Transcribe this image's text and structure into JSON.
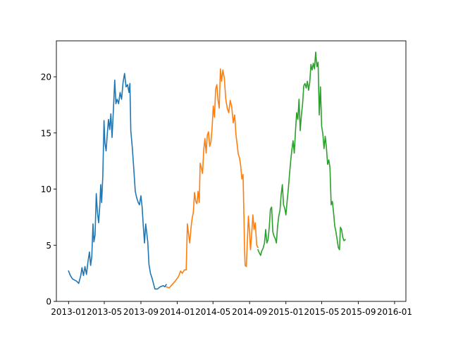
{
  "chart_data": {
    "type": "line",
    "title": "",
    "xlabel": "",
    "ylabel": "",
    "xlim": [
      "2012-11-21",
      "2016-02-08"
    ],
    "ylim": [
      0,
      23.2
    ],
    "grid": false,
    "legend": "none",
    "x_ticks": [
      {
        "date": "2013-01-01",
        "label": "2013-01"
      },
      {
        "date": "2013-05-01",
        "label": "2013-05"
      },
      {
        "date": "2013-09-01",
        "label": "2013-09"
      },
      {
        "date": "2014-01-01",
        "label": "2014-01"
      },
      {
        "date": "2014-05-01",
        "label": "2014-05"
      },
      {
        "date": "2014-09-01",
        "label": "2014-09"
      },
      {
        "date": "2015-01-01",
        "label": "2015-01"
      },
      {
        "date": "2015-05-01",
        "label": "2015-05"
      },
      {
        "date": "2015-09-01",
        "label": "2015-09"
      },
      {
        "date": "2016-01-01",
        "label": "2016-01"
      }
    ],
    "y_ticks": [
      {
        "value": 0,
        "label": "0"
      },
      {
        "value": 5,
        "label": "5"
      },
      {
        "value": 10,
        "label": "10"
      },
      {
        "value": 15,
        "label": "15"
      },
      {
        "value": 20,
        "label": "20"
      }
    ],
    "series": [
      {
        "color": "#1f77b4",
        "points": [
          [
            "2013-01-01",
            2.7
          ],
          [
            "2013-01-07",
            2.3
          ],
          [
            "2013-01-14",
            2.0
          ],
          [
            "2013-01-21",
            1.9
          ],
          [
            "2013-01-28",
            1.8
          ],
          [
            "2013-02-04",
            1.6
          ],
          [
            "2013-02-11",
            2.3
          ],
          [
            "2013-02-15",
            3.0
          ],
          [
            "2013-02-20",
            2.3
          ],
          [
            "2013-02-25",
            3.1
          ],
          [
            "2013-03-02",
            2.4
          ],
          [
            "2013-03-07",
            3.5
          ],
          [
            "2013-03-12",
            4.4
          ],
          [
            "2013-03-16",
            3.2
          ],
          [
            "2013-03-20",
            4.0
          ],
          [
            "2013-03-24",
            6.9
          ],
          [
            "2013-03-27",
            5.3
          ],
          [
            "2013-03-31",
            5.9
          ],
          [
            "2013-04-04",
            9.6
          ],
          [
            "2013-04-08",
            7.9
          ],
          [
            "2013-04-12",
            7.0
          ],
          [
            "2013-04-16",
            8.6
          ],
          [
            "2013-04-19",
            10.4
          ],
          [
            "2013-04-22",
            8.8
          ],
          [
            "2013-04-26",
            11.2
          ],
          [
            "2013-04-30",
            16.1
          ],
          [
            "2013-05-03",
            14.1
          ],
          [
            "2013-05-07",
            13.4
          ],
          [
            "2013-05-11",
            14.9
          ],
          [
            "2013-05-15",
            16.2
          ],
          [
            "2013-05-19",
            15.3
          ],
          [
            "2013-05-23",
            16.7
          ],
          [
            "2013-05-27",
            14.6
          ],
          [
            "2013-06-01",
            17.3
          ],
          [
            "2013-06-05",
            19.7
          ],
          [
            "2013-06-09",
            17.6
          ],
          [
            "2013-06-13",
            18.0
          ],
          [
            "2013-06-18",
            17.6
          ],
          [
            "2013-06-23",
            18.6
          ],
          [
            "2013-06-28",
            18.0
          ],
          [
            "2013-07-03",
            19.5
          ],
          [
            "2013-07-08",
            20.3
          ],
          [
            "2013-07-13",
            19.1
          ],
          [
            "2013-07-18",
            19.3
          ],
          [
            "2013-07-23",
            18.6
          ],
          [
            "2013-07-26",
            19.4
          ],
          [
            "2013-07-29",
            15.2
          ],
          [
            "2013-08-03",
            13.7
          ],
          [
            "2013-08-08",
            11.8
          ],
          [
            "2013-08-13",
            9.8
          ],
          [
            "2013-08-18",
            9.2
          ],
          [
            "2013-08-23",
            8.8
          ],
          [
            "2013-08-27",
            8.6
          ],
          [
            "2013-09-01",
            9.4
          ],
          [
            "2013-09-05",
            8.4
          ],
          [
            "2013-09-09",
            6.7
          ],
          [
            "2013-09-13",
            5.2
          ],
          [
            "2013-09-17",
            6.9
          ],
          [
            "2013-09-21",
            6.0
          ],
          [
            "2013-09-24",
            5.3
          ],
          [
            "2013-09-28",
            3.3
          ],
          [
            "2013-10-03",
            2.5
          ],
          [
            "2013-10-08",
            2.1
          ],
          [
            "2013-10-13",
            1.6
          ],
          [
            "2013-10-18",
            1.1
          ],
          [
            "2013-10-26",
            1.1
          ],
          [
            "2013-11-05",
            1.3
          ],
          [
            "2013-11-15",
            1.4
          ],
          [
            "2013-11-20",
            1.3
          ],
          [
            "2013-11-25",
            1.5
          ]
        ]
      },
      {
        "color": "#ff7f0e",
        "points": [
          [
            "2013-11-25",
            1.3
          ],
          [
            "2013-12-05",
            1.2
          ],
          [
            "2013-12-15",
            1.5
          ],
          [
            "2013-12-25",
            1.8
          ],
          [
            "2014-01-05",
            2.2
          ],
          [
            "2014-01-12",
            2.7
          ],
          [
            "2014-01-18",
            2.5
          ],
          [
            "2014-01-25",
            2.8
          ],
          [
            "2014-01-31",
            2.8
          ],
          [
            "2014-02-04",
            6.9
          ],
          [
            "2014-02-08",
            6.0
          ],
          [
            "2014-02-12",
            5.2
          ],
          [
            "2014-02-16",
            6.5
          ],
          [
            "2014-02-20",
            7.4
          ],
          [
            "2014-02-24",
            7.9
          ],
          [
            "2014-02-28",
            9.7
          ],
          [
            "2014-03-04",
            8.9
          ],
          [
            "2014-03-08",
            8.7
          ],
          [
            "2014-03-12",
            9.8
          ],
          [
            "2014-03-16",
            8.8
          ],
          [
            "2014-03-19",
            12.3
          ],
          [
            "2014-03-23",
            11.9
          ],
          [
            "2014-03-27",
            11.4
          ],
          [
            "2014-03-31",
            13.5
          ],
          [
            "2014-04-04",
            14.5
          ],
          [
            "2014-04-08",
            13.2
          ],
          [
            "2014-04-12",
            14.8
          ],
          [
            "2014-04-16",
            15.1
          ],
          [
            "2014-04-20",
            13.8
          ],
          [
            "2014-04-24",
            14.2
          ],
          [
            "2014-04-28",
            15.4
          ],
          [
            "2014-05-02",
            17.4
          ],
          [
            "2014-05-06",
            16.4
          ],
          [
            "2014-05-10",
            18.9
          ],
          [
            "2014-05-14",
            19.3
          ],
          [
            "2014-05-18",
            17.9
          ],
          [
            "2014-05-22",
            17.2
          ],
          [
            "2014-05-26",
            20.7
          ],
          [
            "2014-05-30",
            19.6
          ],
          [
            "2014-06-03",
            20.6
          ],
          [
            "2014-06-08",
            19.9
          ],
          [
            "2014-06-13",
            18.0
          ],
          [
            "2014-06-18",
            17.2
          ],
          [
            "2014-06-23",
            16.8
          ],
          [
            "2014-06-28",
            17.9
          ],
          [
            "2014-07-03",
            17.3
          ],
          [
            "2014-07-08",
            15.9
          ],
          [
            "2014-07-13",
            16.6
          ],
          [
            "2014-07-17",
            14.9
          ],
          [
            "2014-07-21",
            14.0
          ],
          [
            "2014-07-25",
            13.1
          ],
          [
            "2014-07-29",
            12.8
          ],
          [
            "2014-08-02",
            12.1
          ],
          [
            "2014-08-06",
            10.9
          ],
          [
            "2014-08-10",
            11.3
          ],
          [
            "2014-08-13",
            7.6
          ],
          [
            "2014-08-15",
            4.6
          ],
          [
            "2014-08-17",
            3.2
          ],
          [
            "2014-08-21",
            3.1
          ],
          [
            "2014-08-24",
            5.1
          ],
          [
            "2014-08-28",
            7.6
          ],
          [
            "2014-09-01",
            6.1
          ],
          [
            "2014-09-04",
            4.6
          ],
          [
            "2014-09-08",
            6.0
          ],
          [
            "2014-09-12",
            7.7
          ],
          [
            "2014-09-16",
            6.4
          ],
          [
            "2014-09-20",
            7.0
          ],
          [
            "2014-09-25",
            5.0
          ],
          [
            "2014-09-29",
            4.8
          ]
        ]
      },
      {
        "color": "#2ca02c",
        "points": [
          [
            "2014-09-29",
            4.6
          ],
          [
            "2014-10-04",
            4.3
          ],
          [
            "2014-10-08",
            4.1
          ],
          [
            "2014-10-12",
            4.5
          ],
          [
            "2014-10-16",
            4.7
          ],
          [
            "2014-10-21",
            5.2
          ],
          [
            "2014-10-25",
            6.4
          ],
          [
            "2014-10-29",
            5.2
          ],
          [
            "2014-11-02",
            5.5
          ],
          [
            "2014-11-06",
            6.6
          ],
          [
            "2014-11-10",
            8.2
          ],
          [
            "2014-11-14",
            8.4
          ],
          [
            "2014-11-18",
            6.2
          ],
          [
            "2014-11-22",
            5.8
          ],
          [
            "2014-11-26",
            5.6
          ],
          [
            "2014-11-30",
            5.2
          ],
          [
            "2014-12-04",
            6.7
          ],
          [
            "2014-12-08",
            7.6
          ],
          [
            "2014-12-12",
            8.1
          ],
          [
            "2014-12-16",
            9.5
          ],
          [
            "2014-12-20",
            10.4
          ],
          [
            "2014-12-24",
            8.6
          ],
          [
            "2014-12-28",
            8.3
          ],
          [
            "2015-01-01",
            7.7
          ],
          [
            "2015-01-05",
            8.9
          ],
          [
            "2015-01-09",
            10.0
          ],
          [
            "2015-01-13",
            11.3
          ],
          [
            "2015-01-17",
            12.5
          ],
          [
            "2015-01-21",
            13.5
          ],
          [
            "2015-01-25",
            14.3
          ],
          [
            "2015-01-29",
            13.2
          ],
          [
            "2015-02-02",
            15.1
          ],
          [
            "2015-02-06",
            16.8
          ],
          [
            "2015-02-10",
            16.2
          ],
          [
            "2015-02-14",
            18.0
          ],
          [
            "2015-02-18",
            15.2
          ],
          [
            "2015-02-22",
            16.6
          ],
          [
            "2015-02-26",
            17.6
          ],
          [
            "2015-03-02",
            19.2
          ],
          [
            "2015-03-06",
            19.4
          ],
          [
            "2015-03-10",
            19.0
          ],
          [
            "2015-03-14",
            19.6
          ],
          [
            "2015-03-18",
            18.8
          ],
          [
            "2015-03-22",
            19.5
          ],
          [
            "2015-03-26",
            21.1
          ],
          [
            "2015-03-30",
            20.6
          ],
          [
            "2015-04-03",
            21.2
          ],
          [
            "2015-04-07",
            20.7
          ],
          [
            "2015-04-11",
            22.2
          ],
          [
            "2015-04-15",
            20.9
          ],
          [
            "2015-04-19",
            21.3
          ],
          [
            "2015-04-23",
            16.6
          ],
          [
            "2015-04-27",
            19.1
          ],
          [
            "2015-05-01",
            15.6
          ],
          [
            "2015-05-05",
            14.9
          ],
          [
            "2015-05-09",
            13.6
          ],
          [
            "2015-05-13",
            14.7
          ],
          [
            "2015-05-17",
            13.7
          ],
          [
            "2015-05-21",
            12.2
          ],
          [
            "2015-05-25",
            12.6
          ],
          [
            "2015-05-29",
            11.9
          ],
          [
            "2015-06-02",
            8.6
          ],
          [
            "2015-06-06",
            8.9
          ],
          [
            "2015-06-10",
            7.9
          ],
          [
            "2015-06-14",
            6.7
          ],
          [
            "2015-06-18",
            6.2
          ],
          [
            "2015-06-22",
            5.5
          ],
          [
            "2015-06-26",
            4.8
          ],
          [
            "2015-06-30",
            4.6
          ],
          [
            "2015-07-03",
            6.6
          ],
          [
            "2015-07-07",
            6.4
          ],
          [
            "2015-07-11",
            5.7
          ],
          [
            "2015-07-15",
            5.4
          ],
          [
            "2015-07-19",
            5.5
          ]
        ]
      }
    ]
  }
}
